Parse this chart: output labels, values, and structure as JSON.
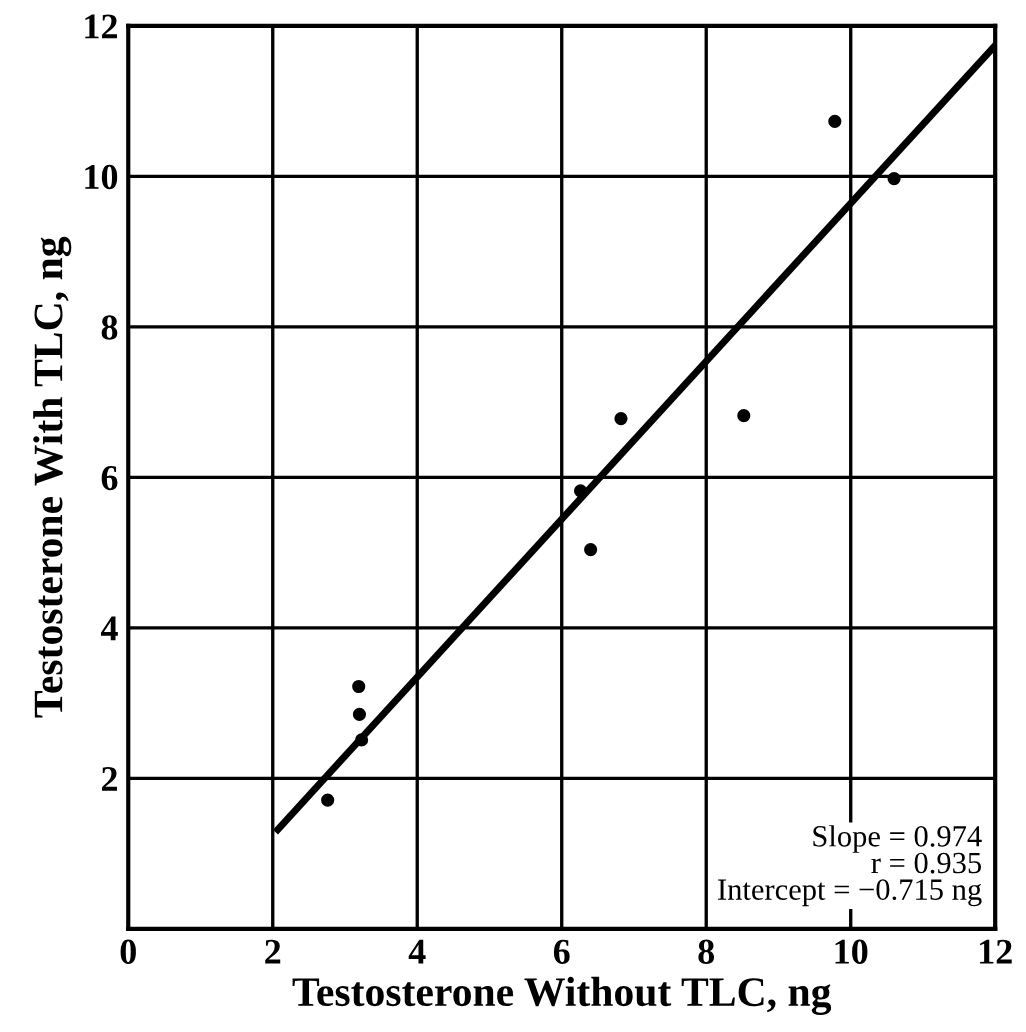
{
  "chart_data": {
    "type": "scatter",
    "xlabel": "Testosterone Without TLC, ng",
    "ylabel": "Testosterone With TLC, ng",
    "series": [
      {
        "color": "#000000",
        "marker": "circle",
        "x": [
          2.76,
          3.19,
          3.2,
          3.23,
          6.26,
          6.4,
          6.82,
          8.52,
          9.78,
          10.6
        ],
        "values": [
          1.71,
          3.22,
          2.85,
          2.51,
          5.82,
          5.04,
          6.78,
          6.82,
          10.73,
          9.97
        ]
      },
      {
        "type": "line",
        "marker": "none",
        "color": "#000000",
        "x": [
          2.07,
          12
        ],
        "values": [
          1.32,
          11.74
        ]
      }
    ],
    "xlim": [
      0,
      12
    ],
    "ylim": [
      0,
      12
    ],
    "xticks": [
      0,
      2,
      4,
      6,
      8,
      10,
      12
    ],
    "yticks": [
      2,
      4,
      6,
      8,
      10,
      12
    ],
    "grid": true,
    "annotations": [
      "Slope = 0.974\nr = 0.935\nIntercept = −0.715 ng"
    ]
  }
}
